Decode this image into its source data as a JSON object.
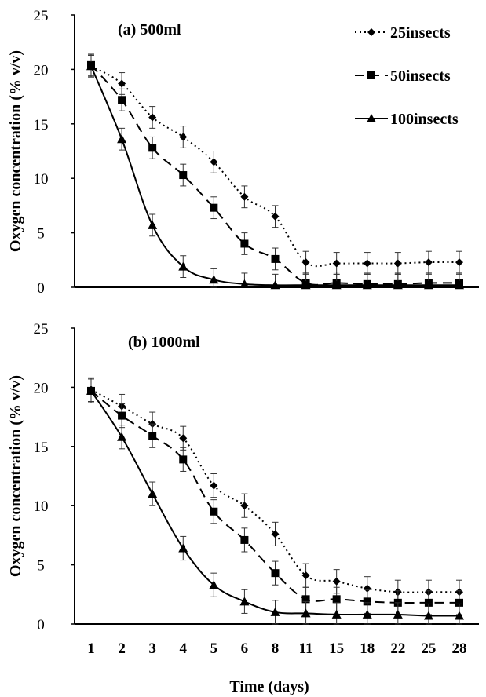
{
  "chart_data": [
    {
      "type": "line",
      "title": "(a) 500ml",
      "ylabel": "Oxygen concentration (% v/v)",
      "xlabel": "",
      "ylim": [
        0,
        25
      ],
      "yticks": [
        0,
        5,
        10,
        15,
        20,
        25
      ],
      "categories": [
        "1",
        "2",
        "3",
        "4",
        "5",
        "6",
        "8",
        "11",
        "15",
        "18",
        "22",
        "25",
        "28"
      ],
      "grid": false,
      "legend_position": "top-right",
      "error_bars": true,
      "series": [
        {
          "name": "25insects",
          "style": "dotted",
          "marker": "diamond",
          "values": [
            20.3,
            18.7,
            15.6,
            13.8,
            11.5,
            8.3,
            6.5,
            2.3,
            2.2,
            2.2,
            2.2,
            2.3,
            2.3
          ],
          "errors": [
            1.0,
            1.0,
            1.0,
            1.0,
            1.0,
            1.0,
            1.0,
            1.0,
            1.0,
            1.0,
            1.0,
            1.0,
            1.0
          ]
        },
        {
          "name": "50insects",
          "style": "dashed",
          "marker": "square",
          "values": [
            20.4,
            17.2,
            12.8,
            10.3,
            7.3,
            4.0,
            2.6,
            0.4,
            0.4,
            0.3,
            0.3,
            0.4,
            0.4
          ],
          "errors": [
            1.0,
            1.0,
            1.0,
            1.0,
            1.0,
            1.0,
            1.0,
            1.0,
            1.0,
            1.0,
            1.0,
            1.0,
            1.0
          ]
        },
        {
          "name": "100insects",
          "style": "solid",
          "marker": "triangle",
          "values": [
            20.3,
            13.6,
            5.7,
            1.9,
            0.7,
            0.3,
            0.2,
            0.2,
            0.2,
            0.2,
            0.2,
            0.2,
            0.2
          ],
          "errors": [
            1.0,
            1.0,
            1.0,
            1.0,
            1.0,
            1.0,
            1.0,
            1.0,
            1.0,
            1.0,
            1.0,
            1.0,
            1.0
          ]
        }
      ]
    },
    {
      "type": "line",
      "title": "(b) 1000ml",
      "ylabel": "Oxygen concentration (% v/v)",
      "xlabel": "Time (days)",
      "ylim": [
        0,
        25
      ],
      "yticks": [
        0,
        5,
        10,
        15,
        20,
        25
      ],
      "categories": [
        "1",
        "2",
        "3",
        "4",
        "5",
        "6",
        "8",
        "11",
        "15",
        "18",
        "22",
        "25",
        "28"
      ],
      "grid": false,
      "error_bars": true,
      "series": [
        {
          "name": "25insects",
          "style": "dotted",
          "marker": "diamond",
          "values": [
            19.8,
            18.4,
            16.9,
            15.7,
            11.7,
            10.0,
            7.6,
            4.1,
            3.6,
            3.0,
            2.7,
            2.7,
            2.7
          ],
          "errors": [
            1.0,
            1.0,
            1.0,
            1.0,
            1.0,
            1.0,
            1.0,
            1.0,
            1.0,
            1.0,
            1.0,
            1.0,
            1.0
          ]
        },
        {
          "name": "50insects",
          "style": "dashed",
          "marker": "square",
          "values": [
            19.7,
            17.6,
            15.9,
            13.9,
            9.5,
            7.1,
            4.3,
            2.1,
            2.1,
            1.9,
            1.8,
            1.8,
            1.8
          ],
          "errors": [
            1.0,
            1.0,
            1.0,
            1.0,
            1.0,
            1.0,
            1.0,
            1.0,
            1.0,
            1.0,
            1.0,
            1.0,
            1.0
          ]
        },
        {
          "name": "100insects",
          "style": "solid",
          "marker": "triangle",
          "values": [
            19.7,
            15.8,
            11.0,
            6.4,
            3.3,
            1.9,
            1.0,
            0.9,
            0.8,
            0.8,
            0.8,
            0.7,
            0.7
          ],
          "errors": [
            1.0,
            1.0,
            1.0,
            1.0,
            1.0,
            1.0,
            1.0,
            1.0,
            1.0,
            1.0,
            1.0,
            1.0,
            1.0
          ]
        }
      ]
    }
  ]
}
